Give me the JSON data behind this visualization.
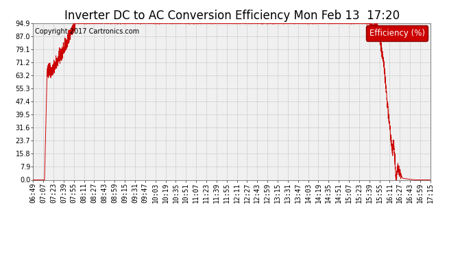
{
  "title": "Inverter DC to AC Conversion Efficiency Mon Feb 13  17:20",
  "copyright": "Copyright 2017 Cartronics.com",
  "legend_label": "Efficiency (%)",
  "legend_bg": "#cc0000",
  "legend_fg": "#ffffff",
  "line_color": "#cc0000",
  "bg_color": "#ffffff",
  "plot_bg_color": "#f0f0f0",
  "grid_color": "#c0c0c0",
  "yticks": [
    0.0,
    7.9,
    15.8,
    23.7,
    31.6,
    39.5,
    47.4,
    55.3,
    63.2,
    71.2,
    79.1,
    87.0,
    94.9
  ],
  "xtick_labels": [
    "06:49",
    "07:07",
    "07:23",
    "07:39",
    "07:55",
    "08:11",
    "08:27",
    "08:43",
    "08:59",
    "09:15",
    "09:31",
    "09:47",
    "10:03",
    "10:19",
    "10:35",
    "10:51",
    "11:07",
    "11:23",
    "11:39",
    "11:55",
    "12:11",
    "12:27",
    "12:43",
    "12:59",
    "13:15",
    "13:31",
    "13:47",
    "14:03",
    "14:19",
    "14:35",
    "14:51",
    "15:07",
    "15:23",
    "15:39",
    "15:55",
    "16:11",
    "16:27",
    "16:43",
    "16:59",
    "17:15"
  ],
  "title_fontsize": 12,
  "copyright_fontsize": 7,
  "tick_fontsize": 7,
  "legend_fontsize": 8.5,
  "ymax": 94.9,
  "xmin": 0,
  "xmax": 39
}
